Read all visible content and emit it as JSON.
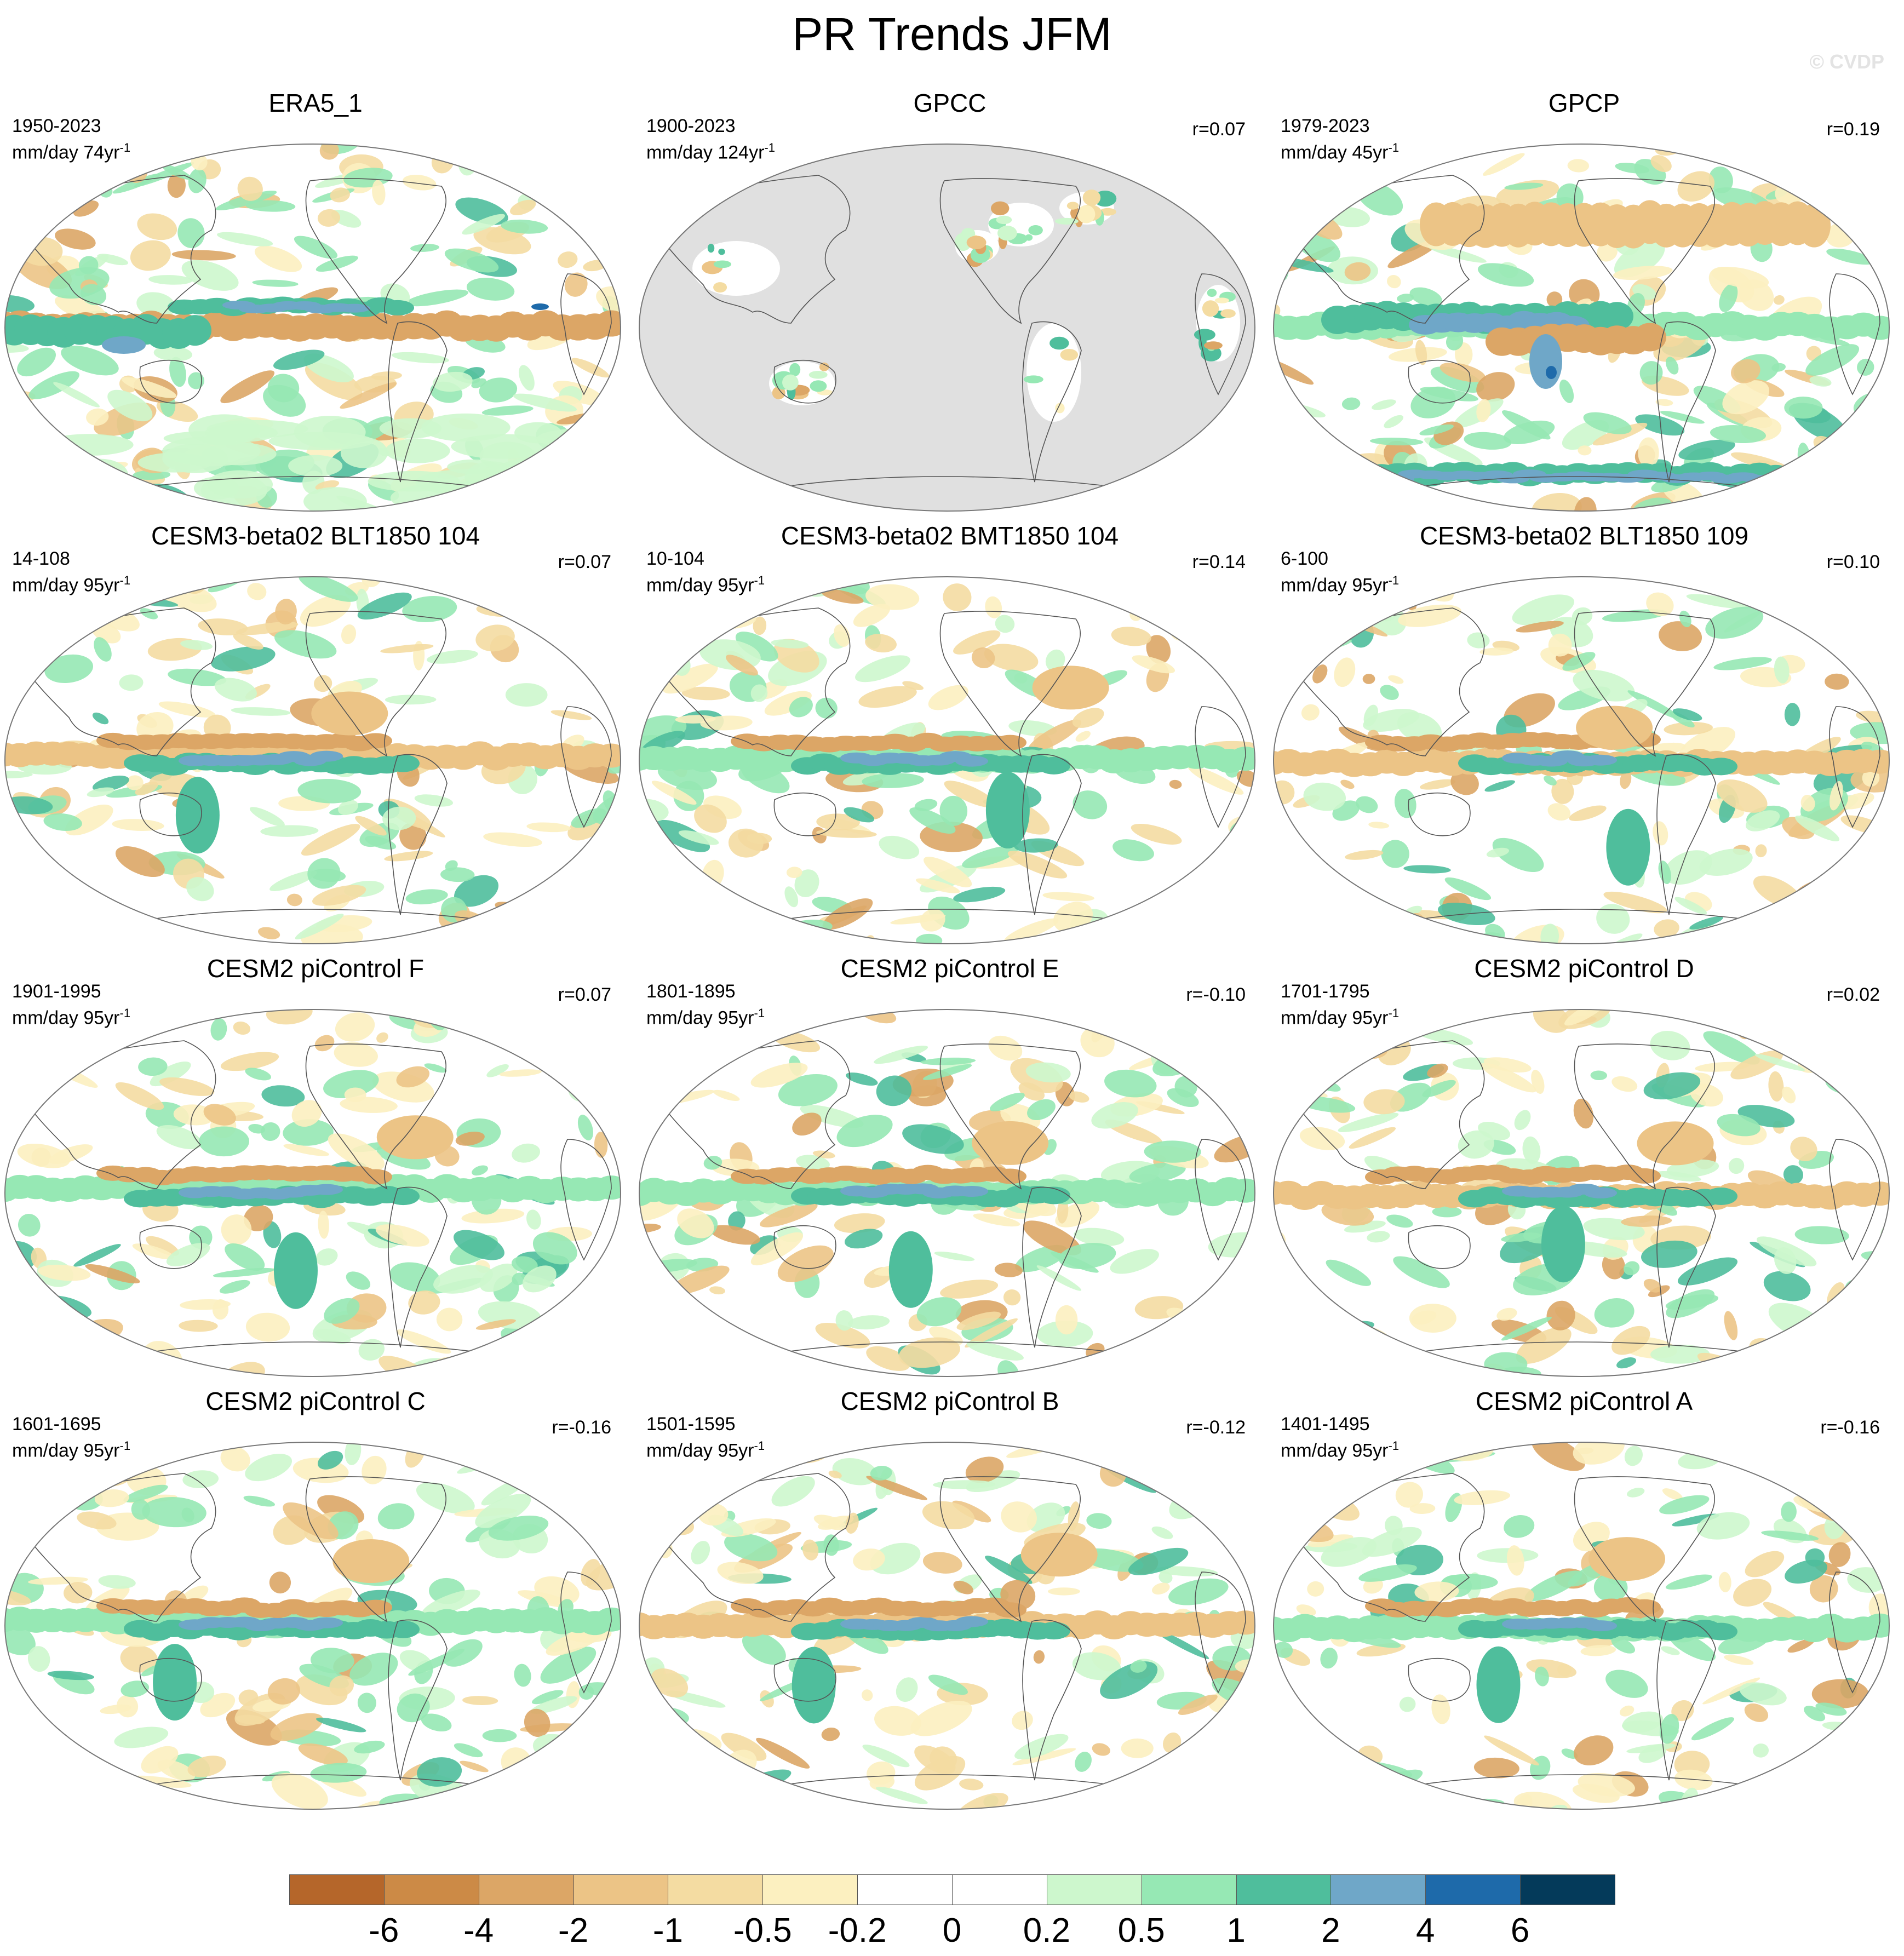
{
  "title": "PR Trends JFM",
  "watermark": "© CVDP",
  "panels": [
    {
      "title": "ERA5_1",
      "years": "1950-2023",
      "units": "mm/day 74yr",
      "r": "",
      "style": "era5"
    },
    {
      "title": "GPCC",
      "years": "1900-2023",
      "units": "mm/day 124yr",
      "r": "r=0.07",
      "style": "gpcc"
    },
    {
      "title": "GPCP",
      "years": "1979-2023",
      "units": "mm/day 45yr",
      "r": "r=0.19",
      "style": "gpcp"
    },
    {
      "title": "CESM3-beta02 BLT1850 104",
      "years": "14-108",
      "units": "mm/day 95yr",
      "r": "r=0.07",
      "style": "model"
    },
    {
      "title": "CESM3-beta02 BMT1850 104",
      "years": "10-104",
      "units": "mm/day 95yr",
      "r": "r=0.14",
      "style": "model"
    },
    {
      "title": "CESM3-beta02 BLT1850 109",
      "years": "6-100",
      "units": "mm/day 95yr",
      "r": "r=0.10",
      "style": "model"
    },
    {
      "title": "CESM2 piControl F",
      "years": "1901-1995",
      "units": "mm/day 95yr",
      "r": "r=0.07",
      "style": "model"
    },
    {
      "title": "CESM2 piControl E",
      "years": "1801-1895",
      "units": "mm/day 95yr",
      "r": "r=-0.10",
      "style": "model"
    },
    {
      "title": "CESM2 piControl D",
      "years": "1701-1795",
      "units": "mm/day 95yr",
      "r": "r=0.02",
      "style": "model"
    },
    {
      "title": "CESM2 piControl C",
      "years": "1601-1695",
      "units": "mm/day 95yr",
      "r": "r=-0.16",
      "style": "model"
    },
    {
      "title": "CESM2 piControl B",
      "years": "1501-1595",
      "units": "mm/day 95yr",
      "r": "r=-0.12",
      "style": "model"
    },
    {
      "title": "CESM2 piControl A",
      "years": "1401-1495",
      "units": "mm/day 95yr",
      "r": "r=-0.16",
      "style": "model"
    }
  ],
  "colorbar": {
    "colors": [
      "#b5662a",
      "#cc8a46",
      "#dca666",
      "#ecc486",
      "#f4dca2",
      "#fcf0c0",
      "#ffffff",
      "#ffffff",
      "#cdf7cd",
      "#96e8b4",
      "#4fbe9c",
      "#6fa7c8",
      "#1e6aaa",
      "#043a5a"
    ],
    "labels": [
      "-6",
      "-4",
      "-2",
      "-1",
      "-0.5",
      "-0.2",
      "0",
      "0.2",
      "0.5",
      "1",
      "2",
      "4",
      "6"
    ]
  },
  "exponent": "-1"
}
